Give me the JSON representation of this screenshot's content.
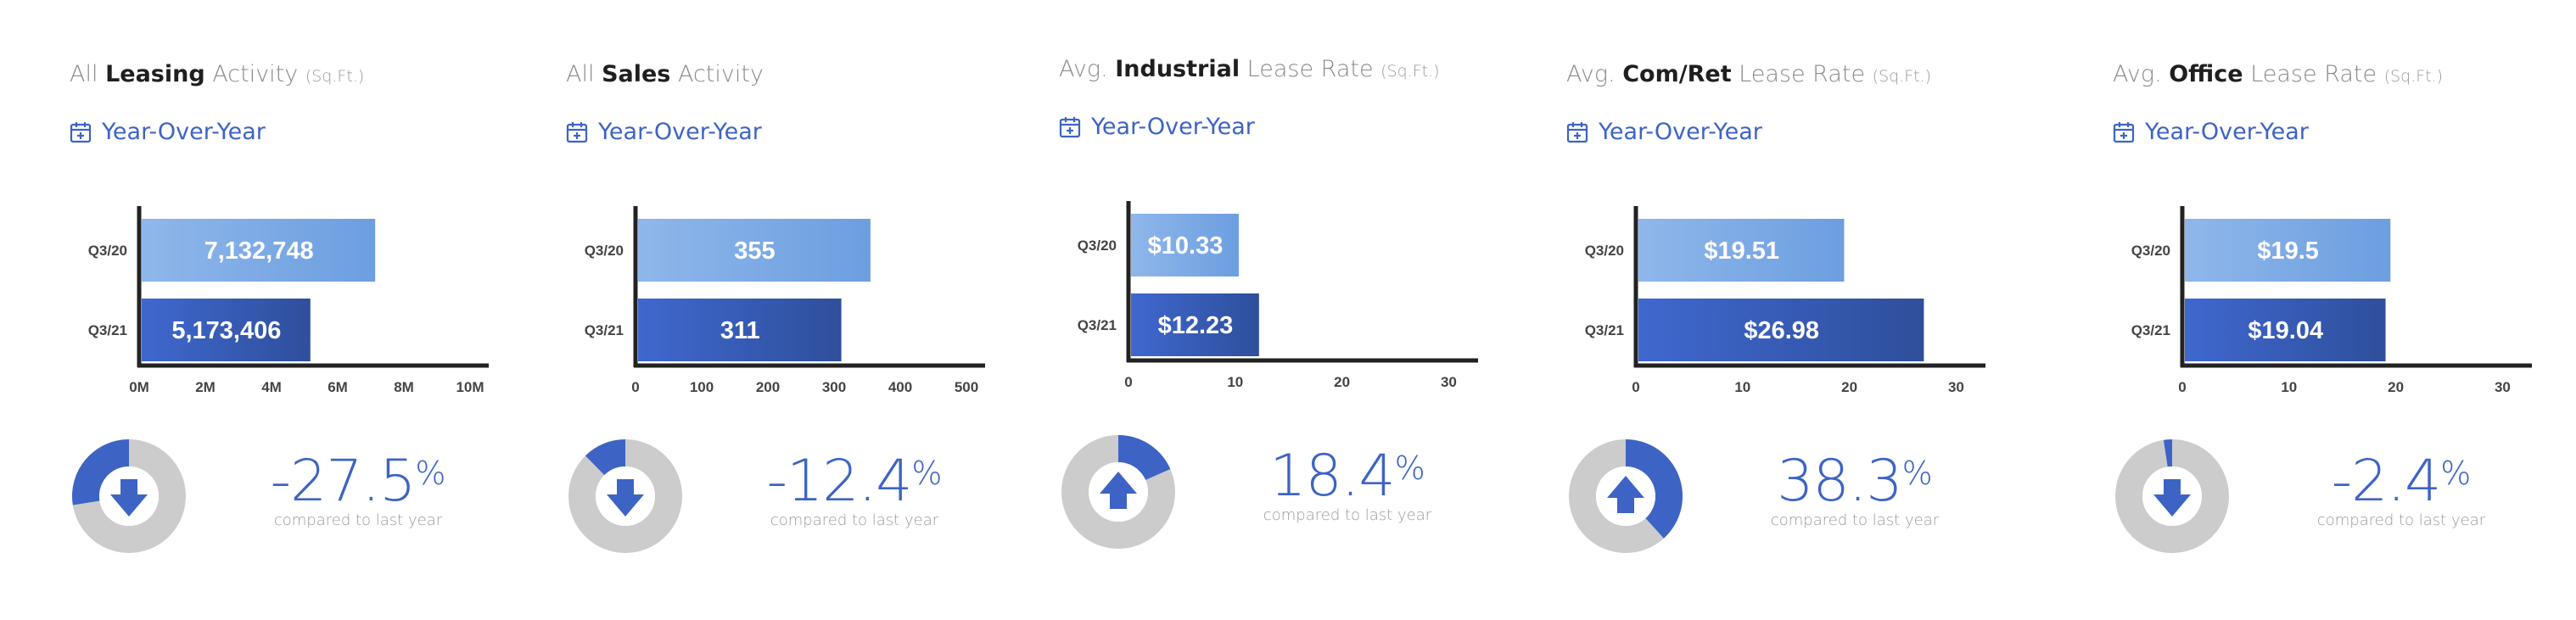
{
  "calendar_icon": "calendar-plus-icon",
  "colors": {
    "accent": "#3d63c4",
    "bar_prev_light": "#8fb7ea",
    "bar_prev_dark": "#6c9ee0",
    "bar_curr_light": "#3f68cf",
    "bar_curr_dark": "#2f4f9c",
    "donut_track": "#cccccc",
    "axis": "#222222"
  },
  "panels": [
    {
      "title_pre": "All ",
      "title_bold": "Leasing",
      "title_post": " Activity ",
      "title_unit": "(Sq.Ft.)",
      "period_label": "Year-Over-Year",
      "change_value": "-27.5",
      "change_sign": "%",
      "change_caption": "compared to last year",
      "change_direction": "down",
      "change_fraction": 0.275
    },
    {
      "title_pre": "All ",
      "title_bold": "Sales",
      "title_post": " Activity",
      "title_unit": "",
      "period_label": "Year-Over-Year",
      "change_value": "-12.4",
      "change_sign": "%",
      "change_caption": "compared to last year",
      "change_direction": "down",
      "change_fraction": 0.124
    },
    {
      "title_pre": "Avg. ",
      "title_bold": "Industrial",
      "title_post": " Lease Rate ",
      "title_unit": "(Sq.Ft.)",
      "period_label": "Year-Over-Year",
      "change_value": "18.4",
      "change_sign": "%",
      "change_caption": "compared to last year",
      "change_direction": "up",
      "change_fraction": 0.184
    },
    {
      "title_pre": "Avg. ",
      "title_bold": "Com/Ret",
      "title_post": " Lease Rate ",
      "title_unit": "(Sq.Ft.)",
      "period_label": "Year-Over-Year",
      "change_value": "38.3",
      "change_sign": "%",
      "change_caption": "compared to last year",
      "change_direction": "up",
      "change_fraction": 0.383
    },
    {
      "title_pre": "Avg. ",
      "title_bold": "Office",
      "title_post": " Lease Rate ",
      "title_unit": "(Sq.Ft.)",
      "period_label": "Year-Over-Year",
      "change_value": "-2.4",
      "change_sign": "%",
      "change_caption": "compared to last year",
      "change_direction": "down",
      "change_fraction": 0.024
    }
  ],
  "chart_data": [
    {
      "type": "bar",
      "orientation": "horizontal",
      "categories": [
        "Q3/20",
        "Q3/21"
      ],
      "values": [
        7132748,
        5173406
      ],
      "value_labels": [
        "7,132,748",
        "5,173,406"
      ],
      "xlim": [
        0,
        10000000
      ],
      "xticks": [
        0,
        2000000,
        4000000,
        6000000,
        8000000,
        10000000
      ],
      "xtick_labels": [
        "0M",
        "2M",
        "4M",
        "6M",
        "8M",
        "10M"
      ],
      "title": "",
      "xlabel": "",
      "ylabel": "",
      "grid": false,
      "legend": "none"
    },
    {
      "type": "bar",
      "orientation": "horizontal",
      "categories": [
        "Q3/20",
        "Q3/21"
      ],
      "values": [
        355,
        311
      ],
      "value_labels": [
        "355",
        "311"
      ],
      "xlim": [
        0,
        500
      ],
      "xticks": [
        0,
        100,
        200,
        300,
        400,
        500
      ],
      "xtick_labels": [
        "0",
        "100",
        "200",
        "300",
        "400",
        "500"
      ],
      "title": "",
      "xlabel": "",
      "ylabel": "",
      "grid": false,
      "legend": "none"
    },
    {
      "type": "bar",
      "orientation": "horizontal",
      "categories": [
        "Q3/20",
        "Q3/21"
      ],
      "values": [
        10.33,
        12.23
      ],
      "value_labels": [
        "$10.33",
        "$12.23"
      ],
      "xlim": [
        0,
        31
      ],
      "xticks": [
        0,
        10,
        20,
        30
      ],
      "xtick_labels": [
        "0",
        "10",
        "20",
        "30"
      ],
      "title": "",
      "xlabel": "",
      "ylabel": "",
      "grid": false,
      "legend": "none"
    },
    {
      "type": "bar",
      "orientation": "horizontal",
      "categories": [
        "Q3/20",
        "Q3/21"
      ],
      "values": [
        19.51,
        26.98
      ],
      "value_labels": [
        "$19.51",
        "$26.98"
      ],
      "xlim": [
        0,
        31
      ],
      "xticks": [
        0,
        10,
        20,
        30
      ],
      "xtick_labels": [
        "0",
        "10",
        "20",
        "30"
      ],
      "title": "",
      "xlabel": "",
      "ylabel": "",
      "grid": false,
      "legend": "none"
    },
    {
      "type": "bar",
      "orientation": "horizontal",
      "categories": [
        "Q3/20",
        "Q3/21"
      ],
      "values": [
        19.5,
        19.04
      ],
      "value_labels": [
        "$19.5",
        "$19.04"
      ],
      "xlim": [
        0,
        31
      ],
      "xticks": [
        0,
        10,
        20,
        30
      ],
      "xtick_labels": [
        "0",
        "10",
        "20",
        "30"
      ],
      "title": "",
      "xlabel": "",
      "ylabel": "",
      "grid": false,
      "legend": "none"
    }
  ]
}
